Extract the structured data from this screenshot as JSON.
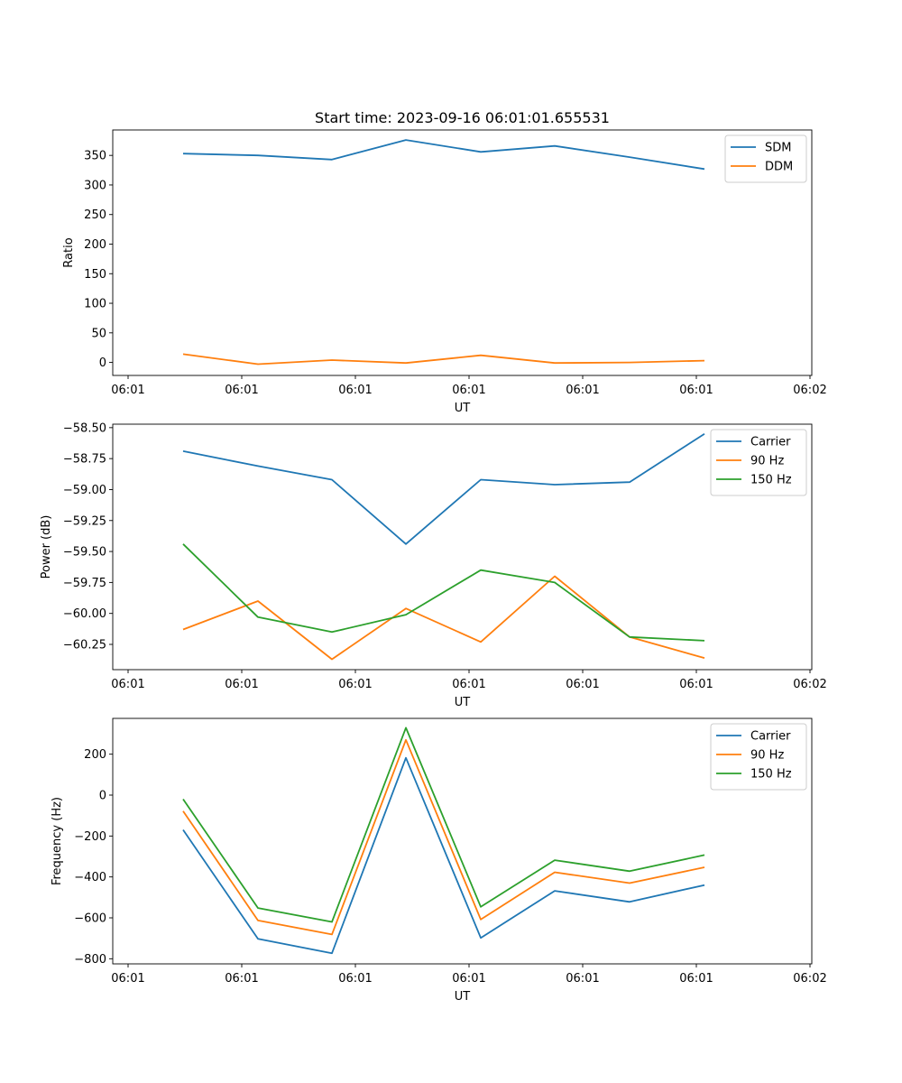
{
  "figure": {
    "title": "Start time: 2023-09-16 06:01:01.655531"
  },
  "chart_data": [
    {
      "type": "line",
      "xlabel": "UT",
      "ylabel": "Ratio",
      "x_tick_labels": [
        "06:01",
        "06:01",
        "06:01",
        "06:01",
        "06:01",
        "06:01",
        "06:02"
      ],
      "y_ticks": [
        0,
        50,
        100,
        150,
        200,
        250,
        300,
        350
      ],
      "y_tick_labels": [
        "0",
        "50",
        "100",
        "150",
        "200",
        "250",
        "300",
        "350"
      ],
      "ylim": [
        -22,
        393
      ],
      "legend_position": "top-right",
      "series": [
        {
          "name": "SDM",
          "color": "#1f77b4",
          "values": [
            353,
            350,
            343,
            376,
            356,
            366,
            347,
            327
          ]
        },
        {
          "name": "DDM",
          "color": "#ff7f0e",
          "values": [
            14,
            -3,
            4,
            -1,
            12,
            -1,
            0,
            3
          ]
        }
      ]
    },
    {
      "type": "line",
      "xlabel": "UT",
      "ylabel": "Power (dB)",
      "x_tick_labels": [
        "06:01",
        "06:01",
        "06:01",
        "06:01",
        "06:01",
        "06:01",
        "06:02"
      ],
      "y_ticks": [
        -60.25,
        -60.0,
        -59.75,
        -59.5,
        -59.25,
        -59.0,
        -58.75,
        -58.5
      ],
      "y_tick_labels": [
        "−60.25",
        "−60.00",
        "−59.75",
        "−59.50",
        "−59.25",
        "−59.00",
        "−58.75",
        "−58.50"
      ],
      "ylim": [
        -60.454,
        -58.472
      ],
      "legend_position": "top-right",
      "series": [
        {
          "name": "Carrier",
          "color": "#1f77b4",
          "values": [
            -58.69,
            -58.81,
            -58.92,
            -59.44,
            -58.92,
            -58.96,
            -58.94,
            -58.55
          ]
        },
        {
          "name": "90 Hz",
          "color": "#ff7f0e",
          "values": [
            -60.13,
            -59.9,
            -60.37,
            -59.96,
            -60.23,
            -59.7,
            -60.19,
            -60.36
          ]
        },
        {
          "name": "150 Hz",
          "color": "#2ca02c",
          "values": [
            -59.44,
            -60.03,
            -60.15,
            -60.01,
            -59.65,
            -59.75,
            -60.19,
            -60.22
          ]
        }
      ]
    },
    {
      "type": "line",
      "xlabel": "UT",
      "ylabel": "Frequency (Hz)",
      "x_tick_labels": [
        "06:01",
        "06:01",
        "06:01",
        "06:01",
        "06:01",
        "06:01",
        "06:02"
      ],
      "y_ticks": [
        -800,
        -600,
        -400,
        -200,
        0,
        200
      ],
      "y_tick_labels": [
        "−800",
        "−600",
        "−400",
        "−200",
        "0",
        "200"
      ],
      "ylim": [
        -825,
        375
      ],
      "legend_position": "top-right",
      "series": [
        {
          "name": "Carrier",
          "color": "#1f77b4",
          "values": [
            -170,
            -703,
            -773,
            182,
            -698,
            -468,
            -522,
            -440
          ]
        },
        {
          "name": "90 Hz",
          "color": "#ff7f0e",
          "values": [
            -78,
            -613,
            -681,
            270,
            -608,
            -377,
            -430,
            -353
          ]
        },
        {
          "name": "150 Hz",
          "color": "#2ca02c",
          "values": [
            -20,
            -552,
            -620,
            329,
            -546,
            -318,
            -372,
            -293
          ]
        }
      ]
    }
  ]
}
